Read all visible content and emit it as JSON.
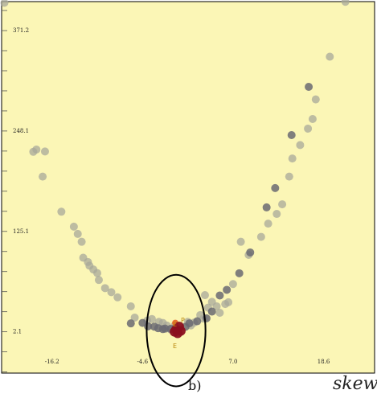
{
  "chart_data": {
    "type": "scatter",
    "panel_label": "b)",
    "xlabel": "skew",
    "x_ticks": [
      "-16.2",
      "-4.6",
      "7.0",
      "18.6"
    ],
    "y_ticks": [
      "2.1",
      "125.1",
      "248.1",
      "371.2"
    ],
    "xlim": [
      -22.66,
      25.14
    ],
    "ylim": [
      -48.5,
      406.6
    ],
    "background_color": "#fbf6b6",
    "light_point_color": "#a8a89a",
    "dark_point_color": "#6a6a72",
    "highlight_colors": [
      "#8b1020",
      "#e8682a"
    ],
    "ellipse_color": "#000000",
    "point_labels": [
      "P",
      "E",
      "E"
    ],
    "series": [
      {
        "style": "light",
        "points": [
          [
            -22.3,
            405.1
          ],
          [
            -18.6,
            222.6
          ],
          [
            -18.2,
            225.4
          ],
          [
            -17.1,
            223.0
          ],
          [
            -17.4,
            192.2
          ],
          [
            -15.0,
            149.2
          ],
          [
            -13.4,
            130.9
          ],
          [
            -12.9,
            122.0
          ],
          [
            -12.4,
            112.4
          ],
          [
            -12.2,
            92.8
          ],
          [
            -11.6,
            87.6
          ],
          [
            -11.4,
            83.1
          ],
          [
            -10.9,
            78.4
          ],
          [
            -10.4,
            74.0
          ],
          [
            -10.2,
            65.6
          ],
          [
            -9.4,
            55.6
          ],
          [
            -8.6,
            50.6
          ],
          [
            -7.8,
            44.3
          ],
          [
            -6.1,
            33.3
          ],
          [
            -5.6,
            19.5
          ],
          [
            -4.0,
            15.9
          ],
          [
            -3.4,
            17.8
          ],
          [
            -2.5,
            14.3
          ],
          [
            -2.0,
            13.0
          ],
          [
            -1.5,
            9.9
          ],
          [
            -1.0,
            4.8
          ],
          [
            -0.5,
            9.6
          ],
          [
            1.2,
            14.3
          ],
          [
            1.6,
            9.9
          ],
          [
            2.0,
            13.3
          ],
          [
            2.8,
            22.6
          ],
          [
            3.2,
            18.3
          ],
          [
            3.8,
            31.7
          ],
          [
            3.4,
            47.0
          ],
          [
            4.3,
            38.8
          ],
          [
            4.9,
            33.3
          ],
          [
            5.3,
            25.4
          ],
          [
            6.0,
            36.1
          ],
          [
            6.4,
            38.3
          ],
          [
            7.0,
            60.6
          ],
          [
            8.0,
            112.4
          ],
          [
            9.0,
            96.3
          ],
          [
            10.6,
            118.4
          ],
          [
            11.5,
            134.6
          ],
          [
            12.6,
            146.5
          ],
          [
            13.3,
            158.3
          ],
          [
            14.2,
            192.2
          ],
          [
            14.6,
            214.4
          ],
          [
            15.6,
            230.9
          ],
          [
            16.6,
            251.0
          ],
          [
            17.2,
            262.8
          ],
          [
            17.6,
            286.8
          ],
          [
            19.4,
            339.1
          ],
          [
            21.4,
            406.4
          ]
        ]
      },
      {
        "style": "dark",
        "points": [
          [
            -6.1,
            12.4
          ],
          [
            -4.6,
            13.0
          ],
          [
            -3.9,
            8.8
          ],
          [
            -3.1,
            8.4
          ],
          [
            -2.6,
            6.5
          ],
          [
            -2.0,
            5.4
          ],
          [
            -1.7,
            6.0
          ],
          [
            -1.0,
            5.7
          ],
          [
            -0.4,
            6.8
          ],
          [
            0.9,
            8.2
          ],
          [
            1.4,
            12.5
          ],
          [
            2.4,
            15.0
          ],
          [
            3.6,
            18.6
          ],
          [
            4.3,
            26.9
          ],
          [
            5.3,
            46.6
          ],
          [
            6.2,
            53.5
          ],
          [
            7.8,
            73.8
          ],
          [
            9.2,
            99.3
          ],
          [
            11.3,
            154.5
          ],
          [
            12.4,
            178.2
          ],
          [
            14.5,
            243.1
          ],
          [
            16.7,
            302.2
          ]
        ]
      },
      {
        "style": "highlight",
        "points": [
          [
            -0.5,
            2.1
          ],
          [
            -0.3,
            4.8
          ],
          [
            0.3,
            3.1
          ],
          [
            -0.1,
            0.2
          ],
          [
            -0.4,
            13.0
          ],
          [
            0.1,
            8.5
          ]
        ]
      }
    ],
    "annotation": {
      "shape": "ellipse",
      "center": [
        -0.3,
        3.6
      ],
      "rx_data": 3.77,
      "ry_data": 68.3
    }
  }
}
